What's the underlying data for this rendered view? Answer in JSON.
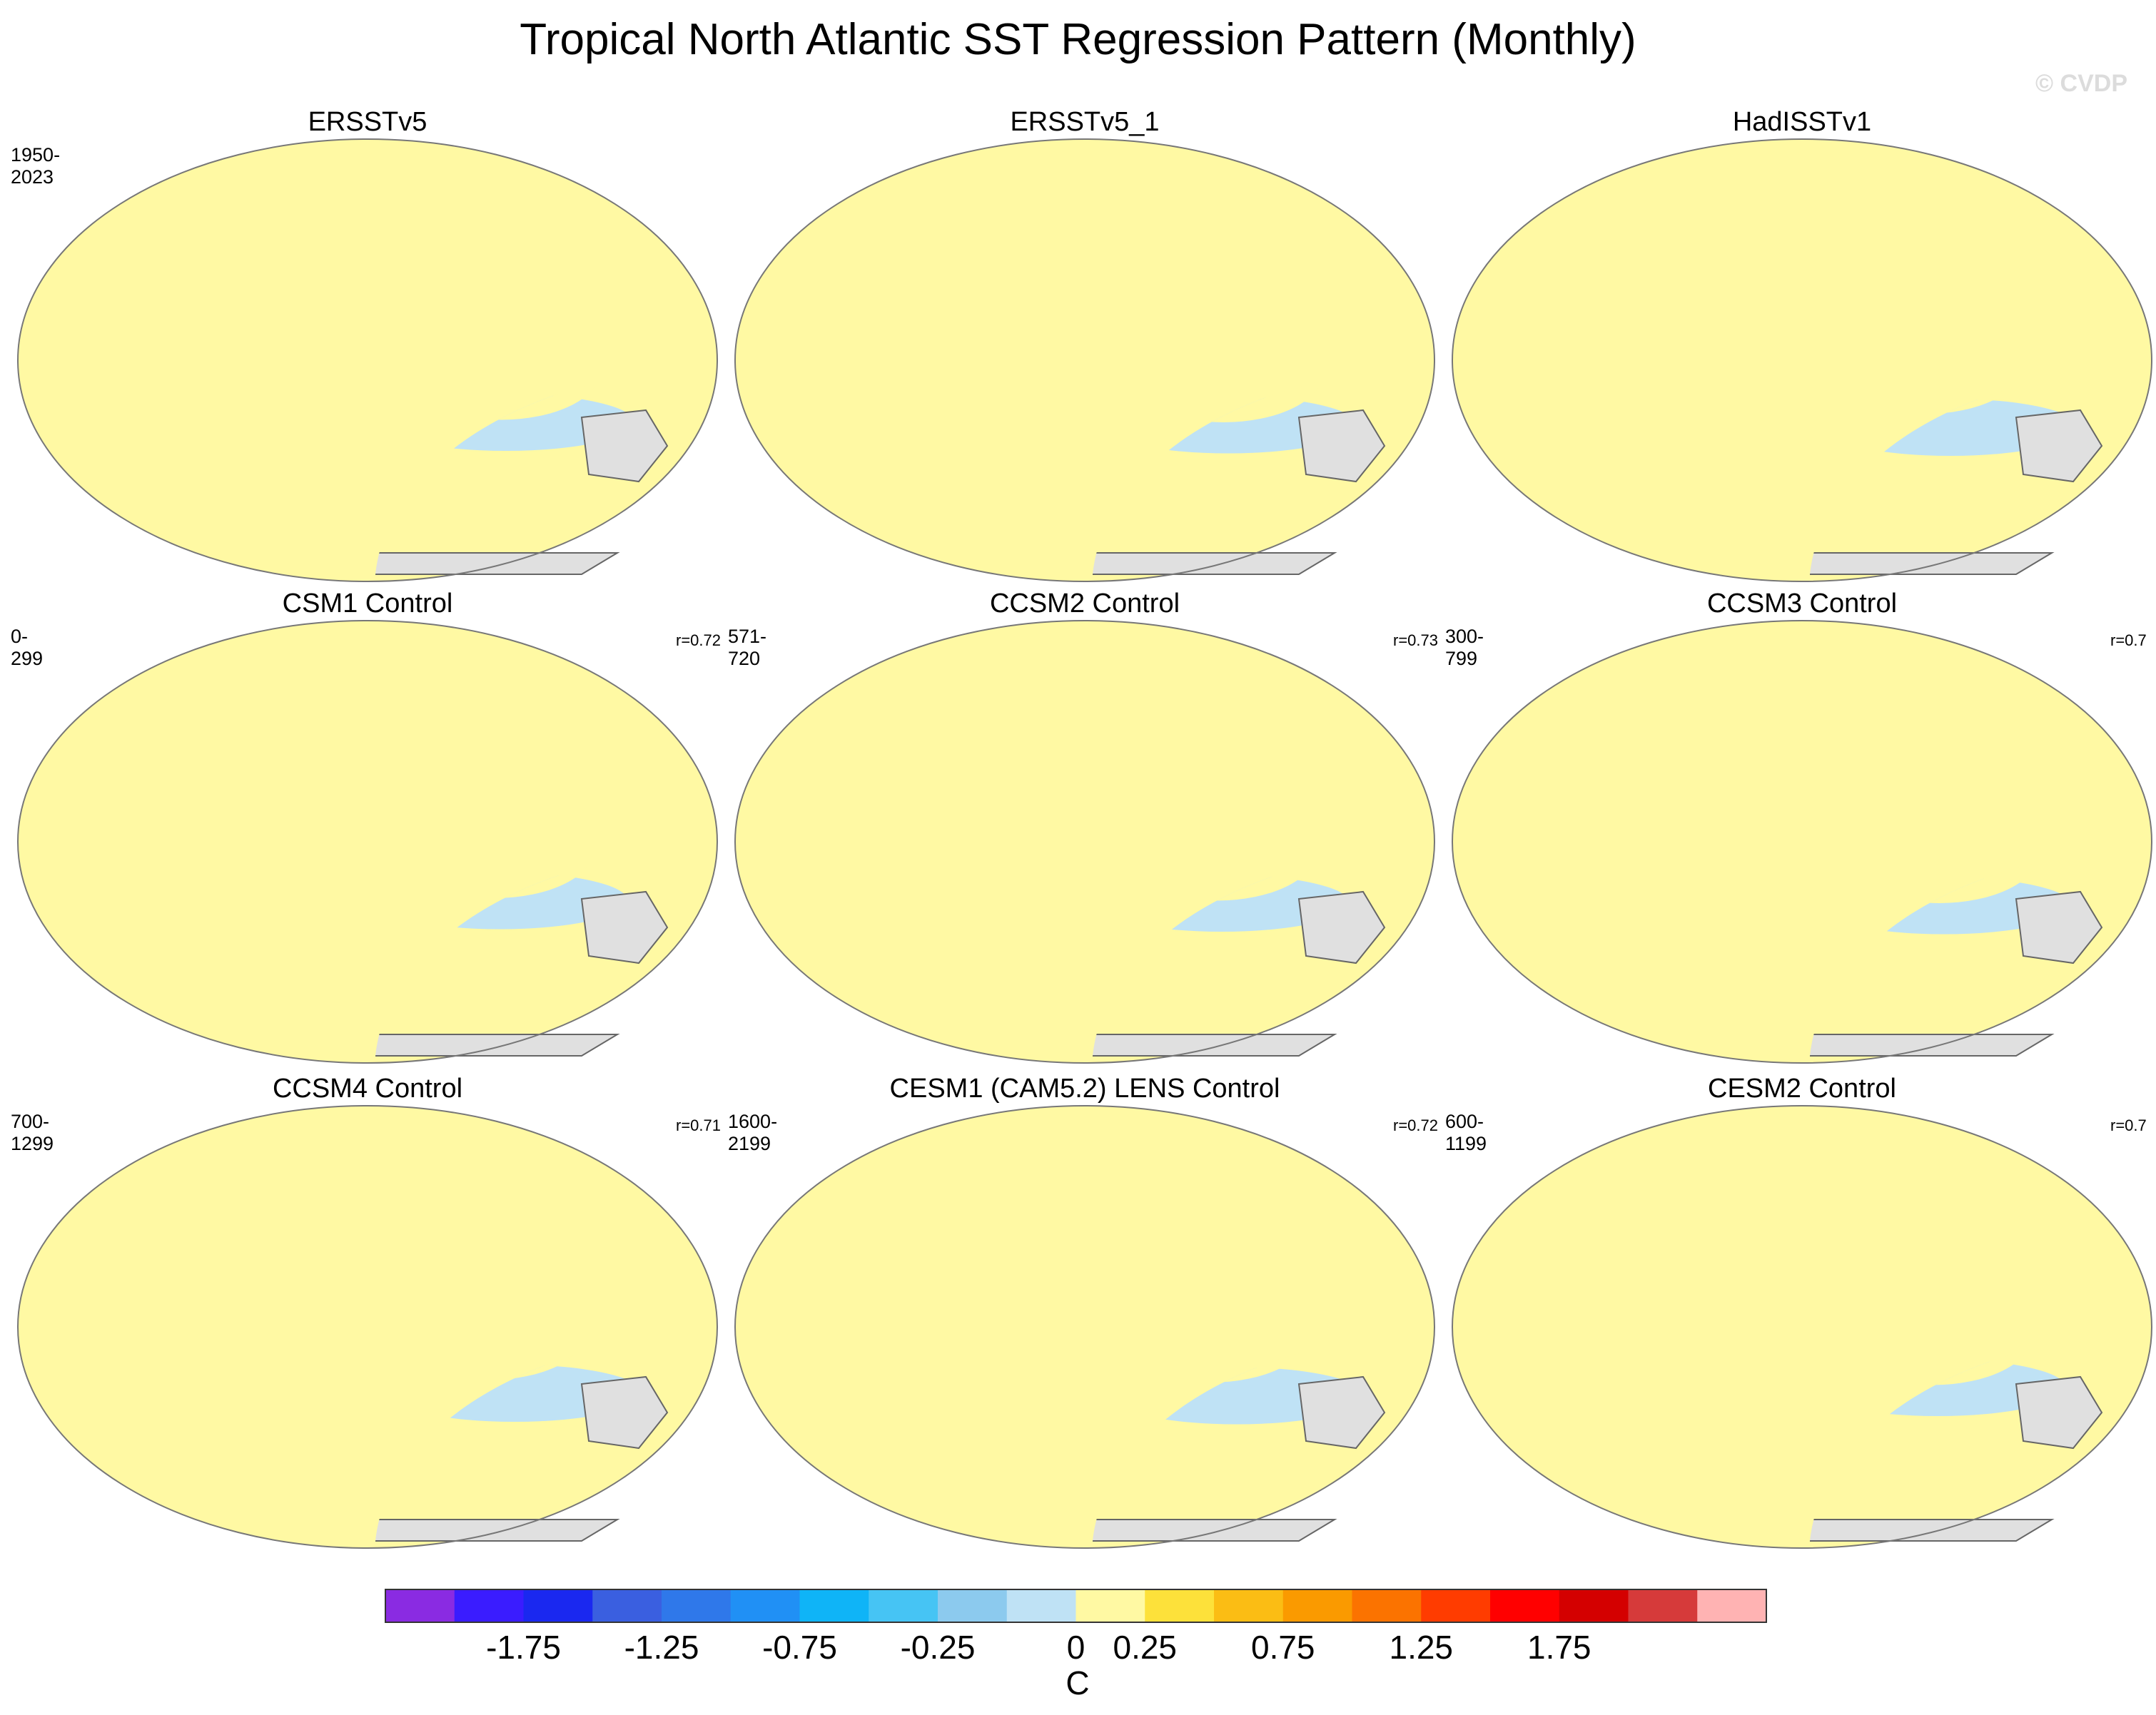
{
  "title": "Tropical North Atlantic SST Regression Pattern (Monthly)",
  "watermark": "© CVDP",
  "panels": [
    {
      "name": "ERSSTv5",
      "period": "1950-2023",
      "r": ""
    },
    {
      "name": "ERSSTv5_1",
      "period": "",
      "r": ""
    },
    {
      "name": "HadISSTv1",
      "period": "",
      "r": ""
    },
    {
      "name": "CSM1 Control",
      "period": "0-299",
      "r": "r=0.72"
    },
    {
      "name": "CCSM2 Control",
      "period": "571-720",
      "r": "r=0.73"
    },
    {
      "name": "CCSM3 Control",
      "period": "300-799",
      "r": "r=0.7"
    },
    {
      "name": "CCSM4 Control",
      "period": "700-1299",
      "r": "r=0.71"
    },
    {
      "name": "CESM1 (CAM5.2) LENS Control",
      "period": "1600-2199",
      "r": "r=0.72"
    },
    {
      "name": "CESM2 Control",
      "period": "600-1199",
      "r": "r=0.7"
    }
  ],
  "colorbar": {
    "unit": "C",
    "labels": [
      "-1.75",
      "-1.25",
      "-0.75",
      "-0.25",
      "0",
      "0.25",
      "0.75",
      "1.25",
      "1.75"
    ],
    "colors": [
      "#8a2be2",
      "#3a1cff",
      "#1a28f0",
      "#3a5fe0",
      "#2f78ea",
      "#2090f5",
      "#0fb4f7",
      "#46c4f4",
      "#8ccaee",
      "#bfe2f5",
      "#fff9a3",
      "#fde13a",
      "#fbbd14",
      "#fa9a00",
      "#fb7300",
      "#ff3c00",
      "#ff0000",
      "#d40000",
      "#d63a3a",
      "#ffb3b3"
    ]
  }
}
